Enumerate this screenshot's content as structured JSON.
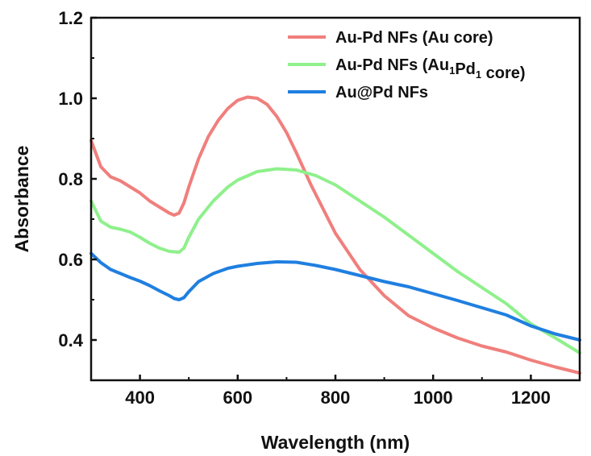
{
  "chart_data": {
    "type": "line",
    "title": "",
    "xlabel": "Wavelength (nm)",
    "ylabel": "Absorbance",
    "xlim": [
      300,
      1300
    ],
    "ylim": [
      0.3,
      1.2
    ],
    "x_ticks": [
      400,
      600,
      800,
      1000,
      1200
    ],
    "y_ticks": [
      0.4,
      0.6,
      0.8,
      1.0,
      1.2
    ],
    "x_tick_labels": [
      "400",
      "600",
      "800",
      "1000",
      "1200"
    ],
    "y_tick_labels": [
      "0.4",
      "0.6",
      "0.8",
      "1.0",
      "1.2"
    ],
    "grid": false,
    "legend_position": "top-right",
    "series": [
      {
        "name": "Au-Pd NFs (Au core)",
        "legend_parts": [
          {
            "text": "Au-Pd NFs (Au core)"
          }
        ],
        "color": "#f07f7c",
        "x": [
          300,
          320,
          340,
          360,
          380,
          400,
          420,
          440,
          460,
          470,
          480,
          490,
          500,
          520,
          540,
          560,
          580,
          600,
          620,
          640,
          660,
          680,
          700,
          720,
          750,
          800,
          850,
          900,
          950,
          1000,
          1050,
          1100,
          1150,
          1200,
          1250,
          1300
        ],
        "values": [
          0.895,
          0.83,
          0.805,
          0.795,
          0.78,
          0.765,
          0.745,
          0.73,
          0.715,
          0.71,
          0.715,
          0.74,
          0.78,
          0.85,
          0.905,
          0.945,
          0.975,
          0.995,
          1.003,
          1.0,
          0.985,
          0.955,
          0.915,
          0.865,
          0.785,
          0.665,
          0.575,
          0.51,
          0.46,
          0.43,
          0.405,
          0.385,
          0.37,
          0.35,
          0.333,
          0.318
        ]
      },
      {
        "name": "Au-Pd NFs (Au1Pd1 core)",
        "legend_parts": [
          {
            "text": "Au-Pd NFs (Au"
          },
          {
            "text": "1",
            "sub": true
          },
          {
            "text": "Pd"
          },
          {
            "text": "1",
            "sub": true
          },
          {
            "text": " core)"
          }
        ],
        "color": "#8ff08c",
        "x": [
          300,
          320,
          340,
          360,
          380,
          400,
          420,
          440,
          460,
          480,
          490,
          500,
          520,
          550,
          580,
          600,
          640,
          680,
          720,
          760,
          800,
          850,
          900,
          950,
          1000,
          1050,
          1100,
          1150,
          1200,
          1250,
          1300
        ],
        "values": [
          0.745,
          0.695,
          0.68,
          0.675,
          0.668,
          0.655,
          0.64,
          0.628,
          0.62,
          0.618,
          0.628,
          0.655,
          0.7,
          0.745,
          0.78,
          0.797,
          0.818,
          0.825,
          0.822,
          0.808,
          0.785,
          0.745,
          0.705,
          0.66,
          0.615,
          0.57,
          0.53,
          0.49,
          0.44,
          0.405,
          0.368
        ]
      },
      {
        "name": "Au@Pd NFs",
        "legend_parts": [
          {
            "text": "Au@Pd NFs"
          }
        ],
        "color": "#1f7fe0",
        "x": [
          300,
          320,
          340,
          360,
          380,
          400,
          420,
          440,
          460,
          470,
          480,
          490,
          500,
          520,
          550,
          580,
          600,
          640,
          680,
          720,
          760,
          800,
          850,
          900,
          950,
          1000,
          1050,
          1100,
          1150,
          1200,
          1250,
          1300
        ],
        "values": [
          0.615,
          0.592,
          0.575,
          0.565,
          0.555,
          0.546,
          0.535,
          0.522,
          0.51,
          0.503,
          0.5,
          0.505,
          0.52,
          0.545,
          0.565,
          0.578,
          0.583,
          0.59,
          0.594,
          0.593,
          0.585,
          0.575,
          0.56,
          0.545,
          0.532,
          0.515,
          0.498,
          0.48,
          0.462,
          0.435,
          0.415,
          0.4
        ]
      }
    ]
  }
}
